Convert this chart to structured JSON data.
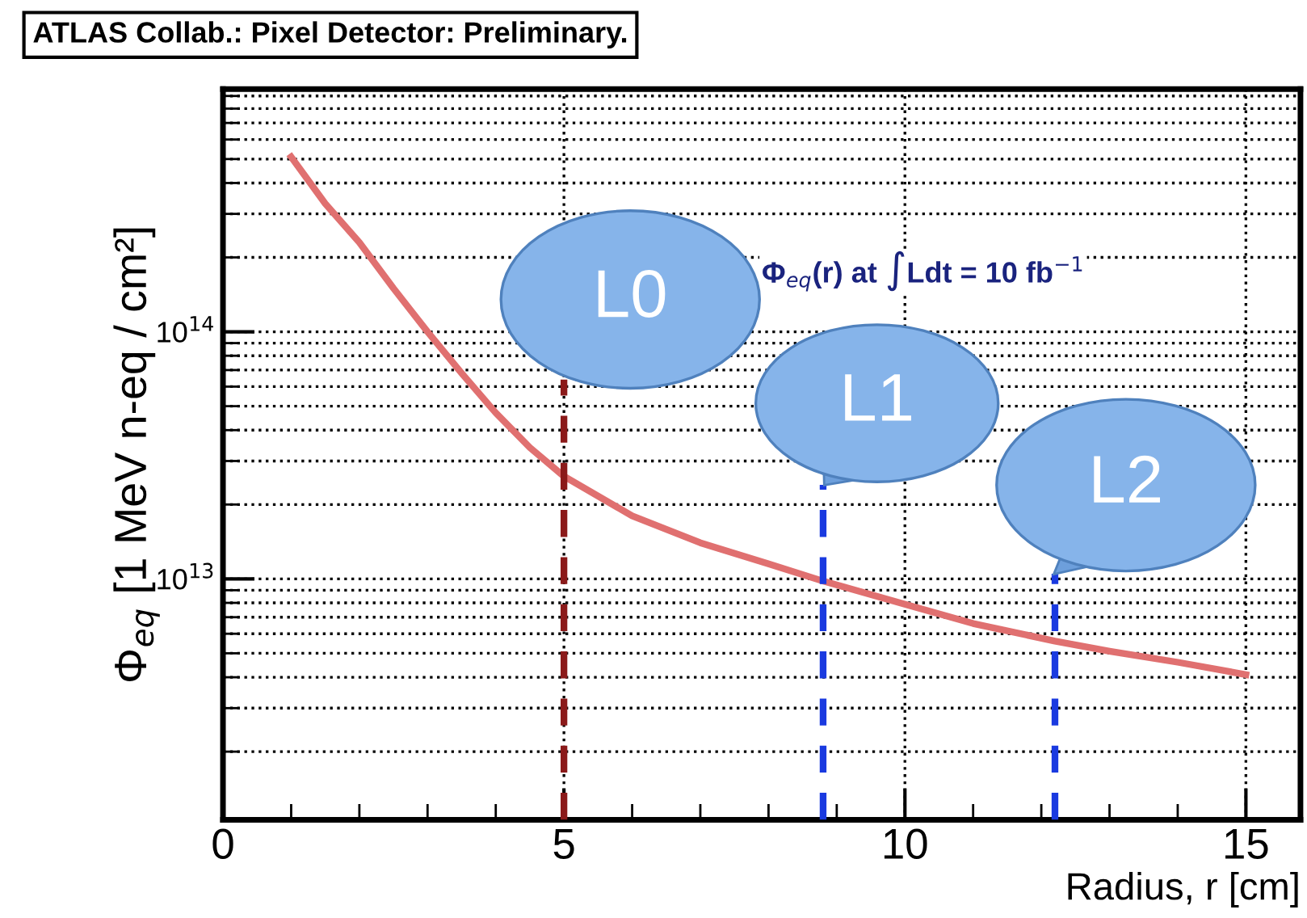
{
  "chart_data": {
    "type": "line",
    "title": "ATLAS Collab.: Pixel Detector: Preliminary.",
    "xlabel": "Radius, r [cm]",
    "ylabel": "Φ$_{eq}$ [1 MeV n-eq / cm²]",
    "log": "y",
    "grid": true,
    "xlim": [
      0,
      15.8
    ],
    "ylim": [
      1060000000000.0,
      960000000000000.0
    ],
    "xticks": [
      0,
      5,
      10,
      15
    ],
    "yticks": [
      {
        "value": 10000000000000.0,
        "label": "10$^{13}$"
      },
      {
        "value": 100000000000000.0,
        "label": "10$^{14}$"
      }
    ],
    "series": [
      {
        "color": "#e07070",
        "x": [
          1,
          1.5,
          2,
          2.5,
          3,
          3.5,
          4,
          4.5,
          5,
          6,
          7,
          8,
          8.8,
          10,
          11,
          12.2,
          13,
          14,
          15
        ],
        "values": [
          510000000000000.0,
          330000000000000.0,
          230000000000000.0,
          150000000000000.0,
          100000000000000.0,
          68000000000000.0,
          47000000000000.0,
          34000000000000.0,
          26000000000000.0,
          18000000000000.0,
          14000000000000.0,
          11500000000000.0,
          9800000000000.0,
          7900000000000.0,
          6600000000000.0,
          5600000000000.0,
          5100000000000.0,
          4600000000000.0,
          4100000000000.0
        ]
      },
      {
        "color": "#8b1a1a",
        "line_style": "dashed",
        "x": [
          5,
          5
        ],
        "values": [
          1060000000000.0,
          64000000000000.0
        ]
      },
      {
        "color": "#1a3ae0",
        "line_style": "dashed",
        "x": [
          8.8,
          8.8
        ],
        "values": [
          1060000000000.0,
          24000000000000.0
        ]
      },
      {
        "color": "#1a3ae0",
        "line_style": "dashed",
        "x": [
          12.2,
          12.2
        ],
        "values": [
          1060000000000.0,
          10500000000000.0
        ]
      }
    ],
    "annotations": [
      "Φ$_{eq}$(r) at ∫Ldt = 10 fb$^{−1}$",
      "L0",
      "L1",
      "L2"
    ]
  }
}
